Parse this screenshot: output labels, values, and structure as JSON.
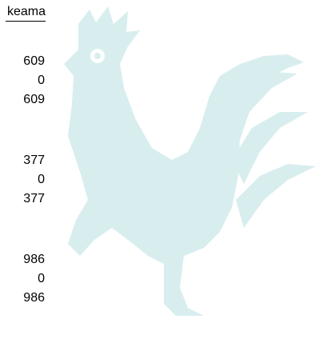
{
  "header": "keama",
  "groups": [
    {
      "values": [
        609,
        0,
        609
      ]
    },
    {
      "values": [
        377,
        0,
        377
      ]
    },
    {
      "values": [
        986,
        0,
        986
      ]
    }
  ]
}
